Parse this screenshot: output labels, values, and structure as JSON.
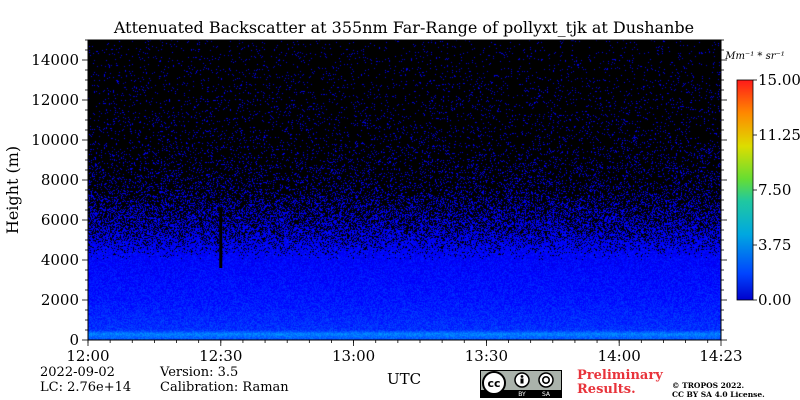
{
  "chart_data": {
    "type": "heatmap",
    "title": "Attenuated Backscatter at 355nm Far-Range of pollyxt_tjk at Dushanbe",
    "xlabel": "UTC",
    "ylabel": "Height (m)",
    "x_ticks": [
      "12:00",
      "12:30",
      "13:00",
      "13:30",
      "14:00",
      "14:23"
    ],
    "x_range": [
      "12:00",
      "14:23"
    ],
    "y_ticks": [
      0,
      2000,
      4000,
      6000,
      8000,
      10000,
      12000,
      14000
    ],
    "ylim": [
      0,
      15000
    ],
    "colorbar": {
      "label": "Mm⁻¹ * sr⁻¹",
      "ticks": [
        "0.00",
        "3.75",
        "7.50",
        "11.25",
        "15.00"
      ],
      "range": [
        0,
        15
      ],
      "colormap": "jet"
    },
    "profile": [
      {
        "height": 0,
        "value": 3.0
      },
      {
        "height": 300,
        "value": 3.8
      },
      {
        "height": 500,
        "value": 2.6
      },
      {
        "height": 2000,
        "value": 2.2
      },
      {
        "height": 4000,
        "value": 1.9
      },
      {
        "height": 5500,
        "value": 1.7
      },
      {
        "height": 8000,
        "value": 1.5
      },
      {
        "height": 14000,
        "value": 1.5
      }
    ],
    "signal_coverage": [
      {
        "height": 4000,
        "fraction": 1.0
      },
      {
        "height": 5500,
        "fraction": 0.55
      },
      {
        "height": 7500,
        "fraction": 0.18
      },
      {
        "height": 10000,
        "fraction": 0.07
      },
      {
        "height": 15000,
        "fraction": 0.03
      }
    ],
    "gap": {
      "time": "12:30",
      "from_height": 3600,
      "to_height": 6600
    },
    "background_color": "#000000"
  },
  "footer": {
    "date": "2022-09-02",
    "version": "Version: 3.5",
    "lc": "LC: 2.76e+14",
    "calibration": "Calibration: Raman",
    "preliminary_line1": "Preliminary",
    "preliminary_line2": "Results.",
    "copyright_line1": "© TROPOS 2022.",
    "copyright_line2": "CC BY SA 4.0 License."
  },
  "license_badge": {
    "left": "BY",
    "right": "SA"
  }
}
